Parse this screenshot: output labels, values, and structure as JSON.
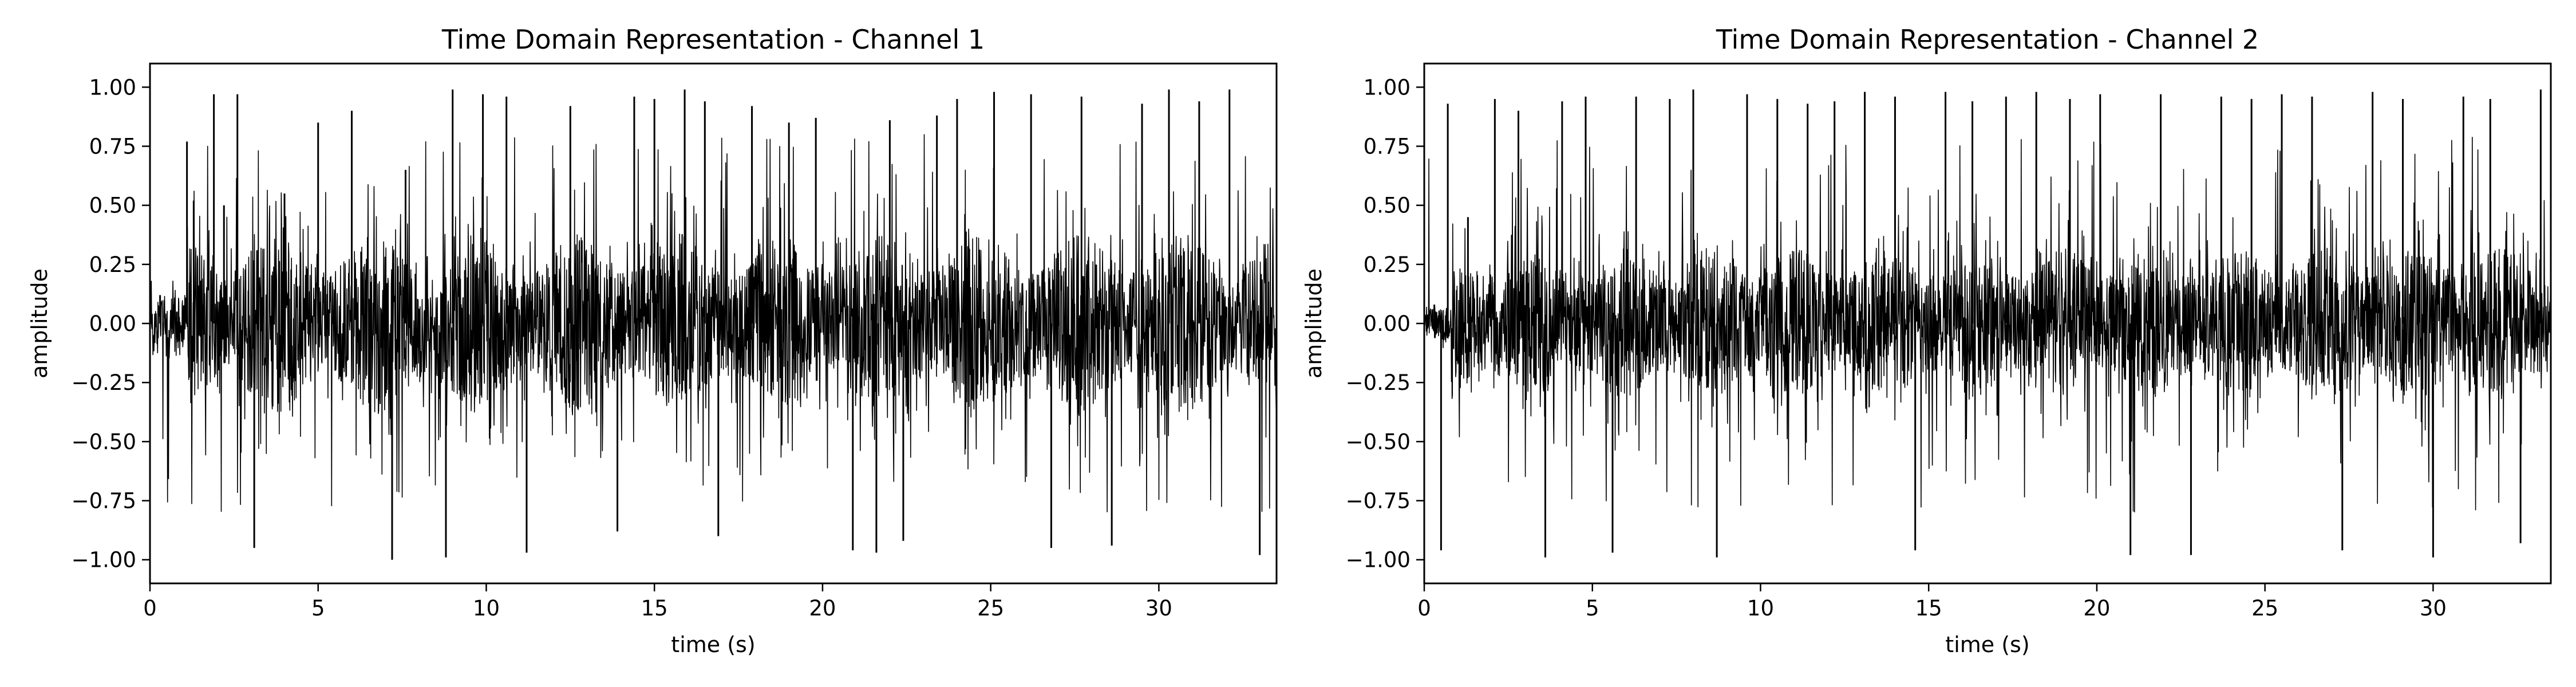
{
  "chart_data": [
    {
      "type": "line",
      "title": "Time Domain Representation - Channel 1",
      "xlabel": "time (s)",
      "ylabel": "amplitude",
      "xlim": [
        0,
        33.5
      ],
      "ylim": [
        -1.1,
        1.1
      ],
      "xticks": [
        0,
        5,
        10,
        15,
        20,
        25,
        30
      ],
      "xtick_labels": [
        "0",
        "5",
        "10",
        "15",
        "20",
        "25",
        "30"
      ],
      "yticks": [
        1.0,
        0.75,
        0.5,
        0.25,
        0.0,
        -0.25,
        -0.5,
        -0.75,
        -1.0
      ],
      "ytick_labels": [
        "1.00",
        "0.75",
        "0.50",
        "0.25",
        "0.00",
        "−0.25",
        "−0.50",
        "−0.75",
        "−1.00"
      ],
      "grid": false,
      "line_color": "#000000",
      "series": [
        {
          "x": [
            0,
            0.3,
            0.8,
            1.1,
            1.3,
            1.9,
            2.2,
            2.6,
            3.1,
            4.0,
            5.0,
            6.0,
            7.2,
            7.6,
            8.8,
            9.0,
            9.9,
            10.6,
            11.2,
            12.5,
            13.9,
            14.4,
            15.0,
            15.9,
            16.5,
            16.9,
            17.9,
            19.0,
            19.8,
            20.9,
            21.6,
            22.0,
            22.4,
            23.4,
            24.0,
            25.1,
            26.2,
            26.8,
            27.7,
            28.6,
            29.5,
            30.3,
            31.2,
            32.1,
            33.0
          ],
          "y": [
            0.05,
            0.12,
            0.05,
            0.77,
            0.52,
            0.97,
            0.5,
            0.97,
            -0.95,
            0.55,
            0.85,
            0.9,
            -1.0,
            0.65,
            -0.99,
            0.99,
            0.97,
            0.96,
            -0.97,
            0.92,
            -0.88,
            0.96,
            0.95,
            0.99,
            0.94,
            -0.9,
            0.92,
            0.85,
            0.87,
            -0.96,
            -0.97,
            0.86,
            -0.92,
            0.88,
            0.95,
            0.98,
            0.97,
            -0.95,
            0.96,
            -0.94,
            0.93,
            0.99,
            0.94,
            0.99,
            -0.98
          ]
        }
      ]
    },
    {
      "type": "line",
      "title": "Time Domain Representation - Channel 2",
      "xlabel": "time (s)",
      "ylabel": "amplitude",
      "xlim": [
        0,
        33.5
      ],
      "ylim": [
        -1.1,
        1.1
      ],
      "xticks": [
        0,
        5,
        10,
        15,
        20,
        25,
        30
      ],
      "xtick_labels": [
        "0",
        "5",
        "10",
        "15",
        "20",
        "25",
        "30"
      ],
      "yticks": [
        1.0,
        0.75,
        0.5,
        0.25,
        0.0,
        -0.25,
        -0.5,
        -0.75,
        -1.0
      ],
      "ytick_labels": [
        "1.00",
        "0.75",
        "0.50",
        "0.25",
        "0.00",
        "−0.25",
        "−0.50",
        "−0.75",
        "−1.00"
      ],
      "grid": false,
      "line_color": "#000000",
      "series": [
        {
          "x": [
            0,
            0.3,
            0.5,
            0.7,
            1.3,
            2.1,
            2.8,
            3.6,
            4.1,
            4.8,
            5.6,
            6.3,
            7.3,
            8.0,
            8.7,
            9.6,
            10.5,
            11.4,
            12.2,
            13.1,
            14.0,
            14.6,
            15.5,
            16.3,
            17.3,
            18.2,
            19.2,
            20.1,
            21.0,
            21.9,
            22.8,
            23.7,
            24.6,
            25.5,
            26.4,
            27.3,
            28.2,
            29.1,
            30.0,
            30.9,
            31.7,
            32.6,
            33.2
          ],
          "y": [
            0.0,
            0.08,
            -0.96,
            0.93,
            0.45,
            0.95,
            0.9,
            -0.99,
            0.94,
            0.96,
            -0.97,
            0.96,
            0.95,
            0.99,
            -0.99,
            0.97,
            0.95,
            0.93,
            0.94,
            0.98,
            0.96,
            -0.96,
            0.98,
            0.94,
            0.96,
            0.98,
            0.95,
            0.97,
            -0.98,
            0.97,
            -0.98,
            0.96,
            0.95,
            0.97,
            0.96,
            -0.96,
            0.98,
            0.95,
            -0.99,
            0.96,
            0.95,
            -0.93,
            0.99
          ]
        }
      ]
    }
  ]
}
